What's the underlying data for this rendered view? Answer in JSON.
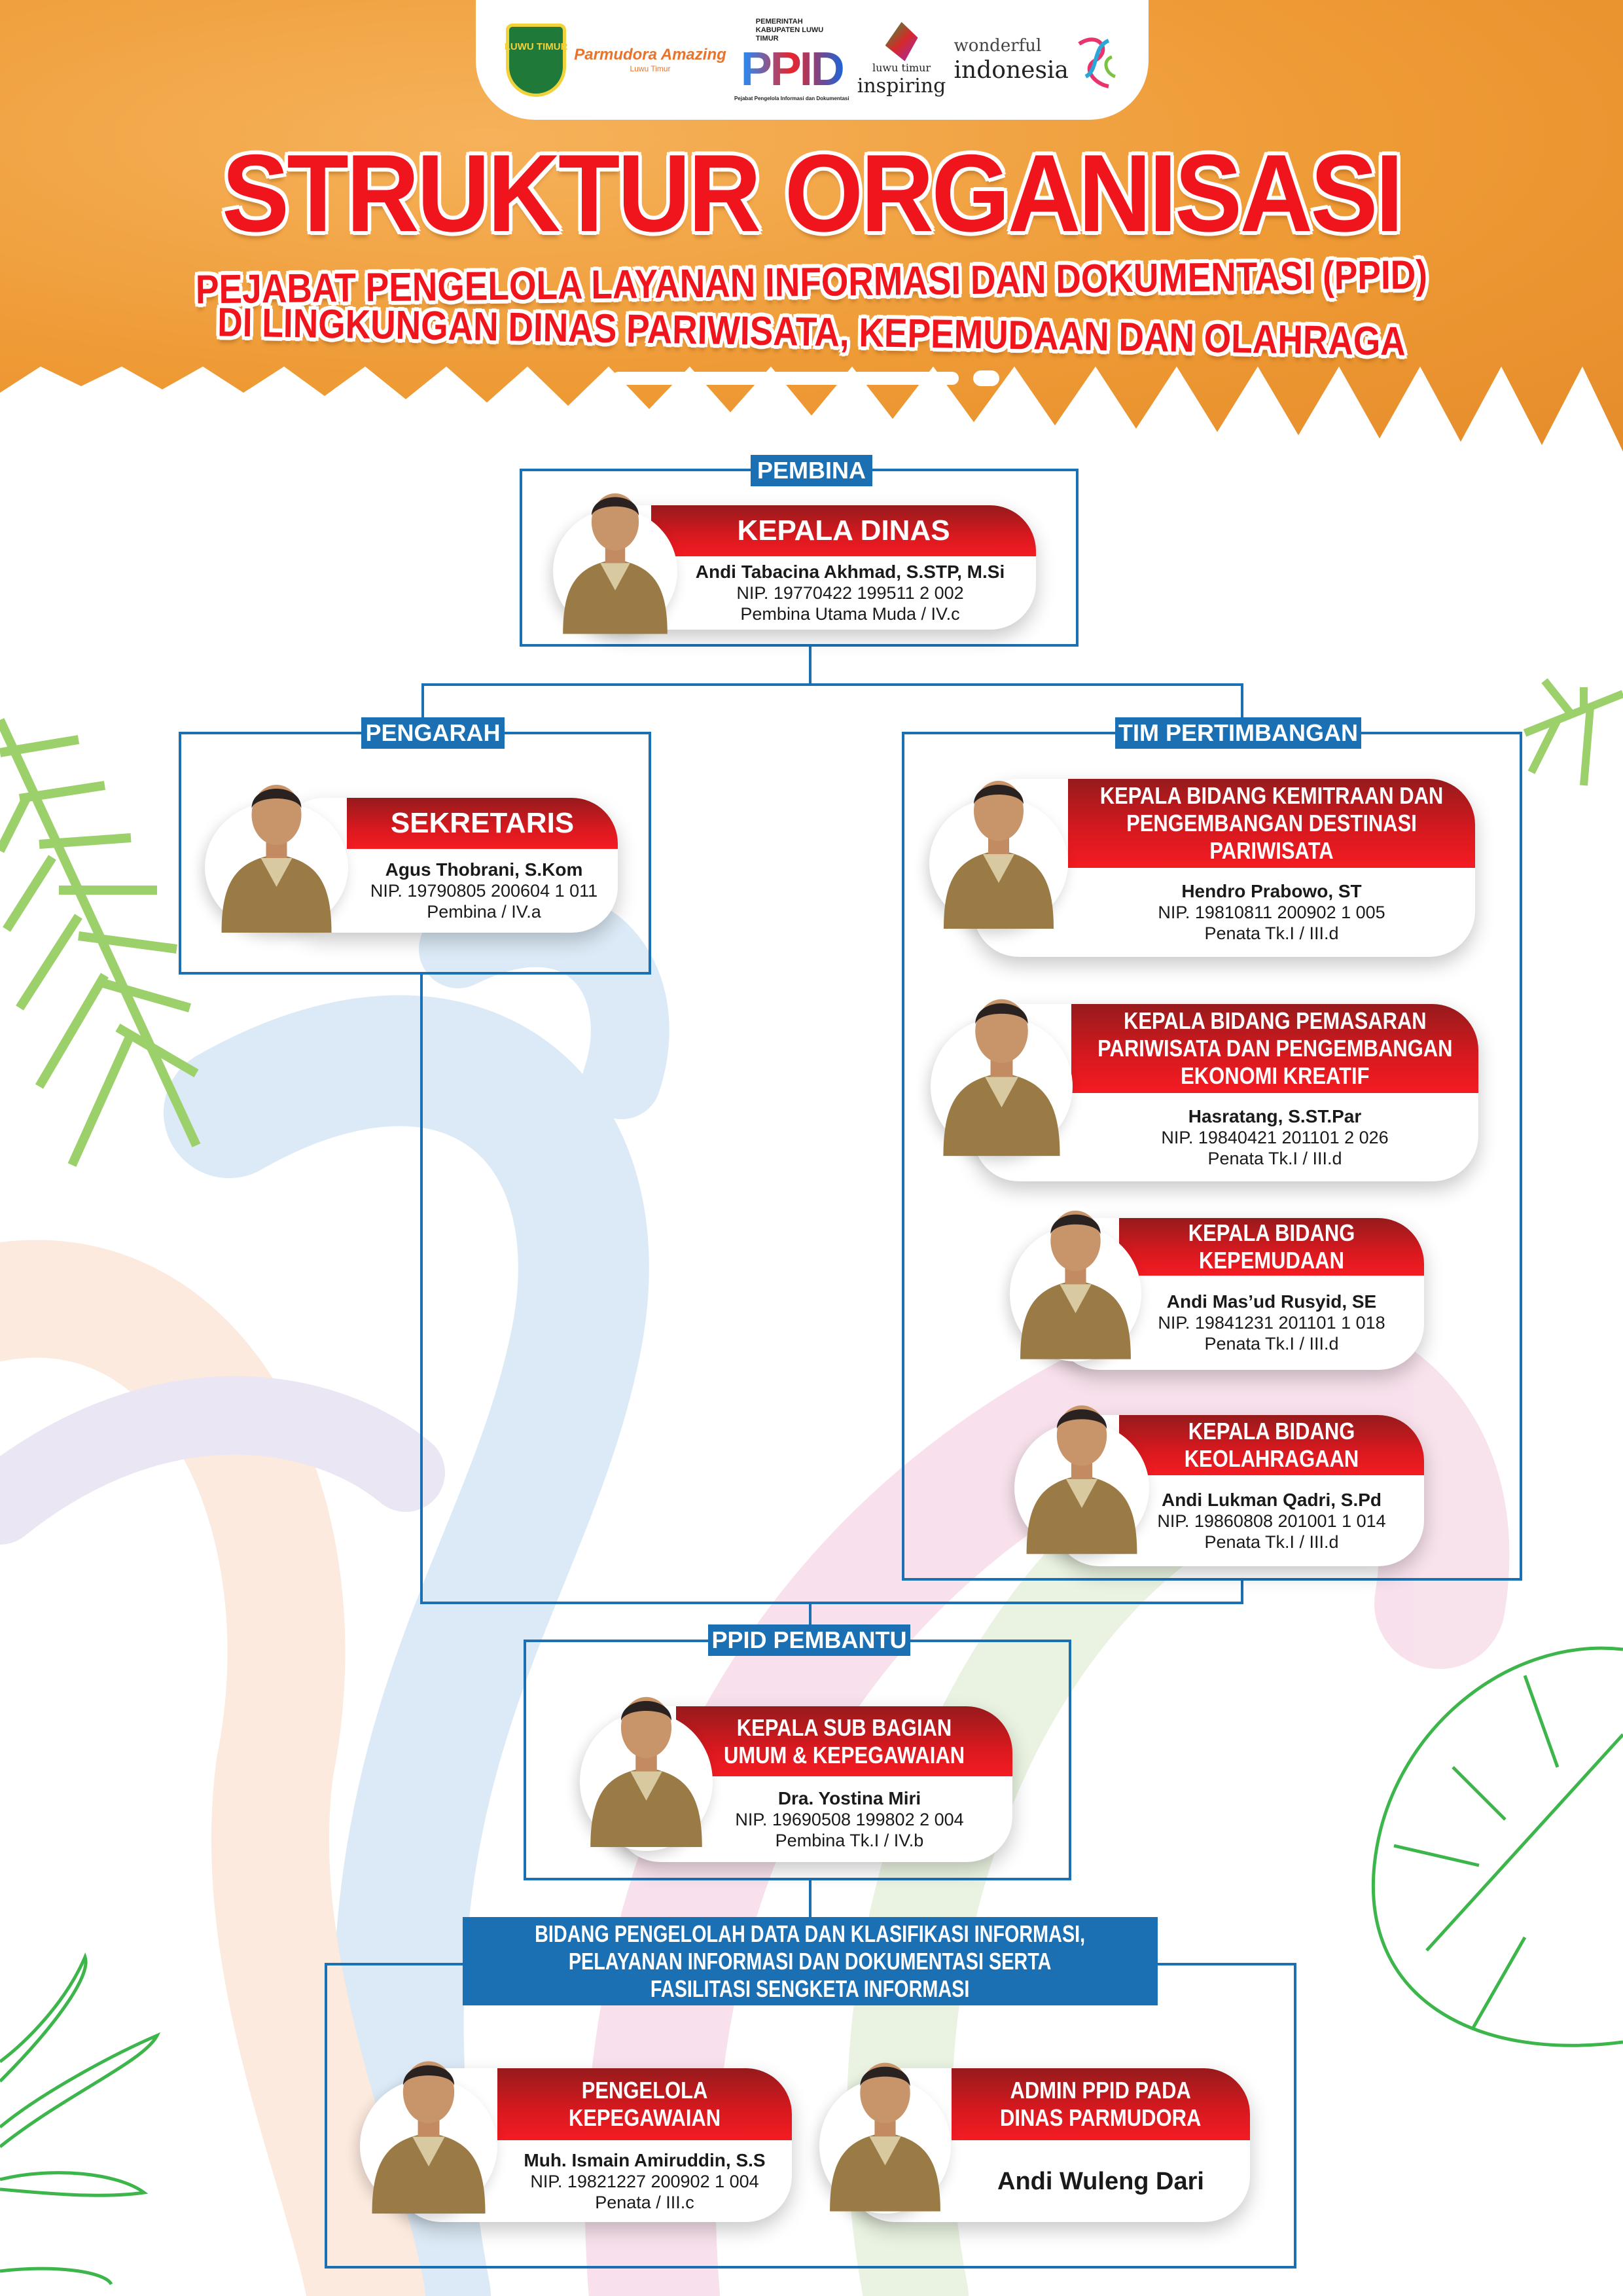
{
  "header": {
    "logos": [
      {
        "name": "luwu-timur-crest",
        "text": "LUWU TIMUR"
      },
      {
        "name": "parmudora-amazing",
        "text": "Parmudora Amazing",
        "sub": "Luwu Timur"
      },
      {
        "name": "ppid-logo",
        "top": "PEMERINTAH KABUPATEN LUWU TIMUR",
        "text": "PPID",
        "sub": "Pejabat Pengelola Informasi dan Dokumentasi"
      },
      {
        "name": "luwu-timur-inspiring",
        "text": "luwu timur",
        "sub": "inspiring"
      },
      {
        "name": "wonderful-indonesia",
        "text": "wonderful",
        "sub": "indonesia"
      }
    ],
    "title": "STRUKTUR ORGANISASI",
    "subtitle_line1": "PEJABAT PENGELOLA LAYANAN INFORMASI DAN DOKUMENTASI (PPID)",
    "subtitle_line2": "DI LINGKUNGAN DINAS PARIWISATA, KEPEMUDAAN DAN OLAHRAGA"
  },
  "colors": {
    "accent_blue": "#1b6fb3",
    "header_red": "#e8191f",
    "header_orange": "#ee9a35"
  },
  "sections": {
    "pembina": {
      "label": "PEMBINA",
      "member": {
        "position": "KEPALA DINAS",
        "name": "Andi Tabacina Akhmad, S.STP, M.Si",
        "nip": "NIP. 19770422 199511 2 002",
        "rank": "Pembina Utama Muda / IV.c"
      }
    },
    "pengarah": {
      "label": "PENGARAH",
      "member": {
        "position": "SEKRETARIS",
        "name": "Agus Thobrani, S.Kom",
        "nip": "NIP. 19790805 200604 1 011",
        "rank": "Pembina / IV.a"
      }
    },
    "tim_pertimbangan": {
      "label": "TIM PERTIMBANGAN",
      "members": [
        {
          "position": "KEPALA BIDANG KEMITRAAN DAN\nPENGEMBANGAN DESTINASI\nPARIWISATA",
          "name": "Hendro Prabowo, ST",
          "nip": "NIP. 19810811 200902 1 005",
          "rank": "Penata Tk.I / III.d"
        },
        {
          "position": "KEPALA BIDANG PEMASARAN\nPARIWISATA DAN PENGEMBANGAN\nEKONOMI KREATIF",
          "name": "Hasratang, S.ST.Par",
          "nip": "NIP. 19840421 201101 2 026",
          "rank": "Penata Tk.I / III.d"
        },
        {
          "position": "KEPALA BIDANG\nKEPEMUDAAN",
          "name": "Andi Mas’ud Rusyid, SE",
          "nip": "NIP. 19841231 201101 1 018",
          "rank": "Penata Tk.I / III.d"
        },
        {
          "position": "KEPALA BIDANG\nKEOLAHRAGAAN",
          "name": "Andi Lukman Qadri, S.Pd",
          "nip": "NIP. 19860808 201001 1 014",
          "rank": "Penata Tk.I / III.d"
        }
      ]
    },
    "ppid_pembantu": {
      "label": "PPID PEMBANTU",
      "member": {
        "position": "KEPALA SUB BAGIAN\nUMUM & KEPEGAWAIAN",
        "name": "Dra. Yostina Miri",
        "nip": "NIP. 19690508 199802 2 004",
        "rank": "Pembina Tk.I / IV.b"
      }
    },
    "bidang_data": {
      "label": "BIDANG PENGELOLAH DATA DAN KLASIFIKASI INFORMASI,\nPELAYANAN INFORMASI DAN DOKUMENTASI SERTA\nFASILITASI SENGKETA INFORMASI",
      "members": [
        {
          "position": "PENGELOLA\nKEPEGAWAIAN",
          "name": "Muh. Ismain Amiruddin, S.S",
          "nip": "NIP. 19821227 200902 1 004",
          "rank": "Penata / III.c"
        },
        {
          "position": "ADMIN PPID PADA\nDINAS PARMUDORA",
          "name": "Andi Wuleng Dari"
        }
      ]
    }
  }
}
